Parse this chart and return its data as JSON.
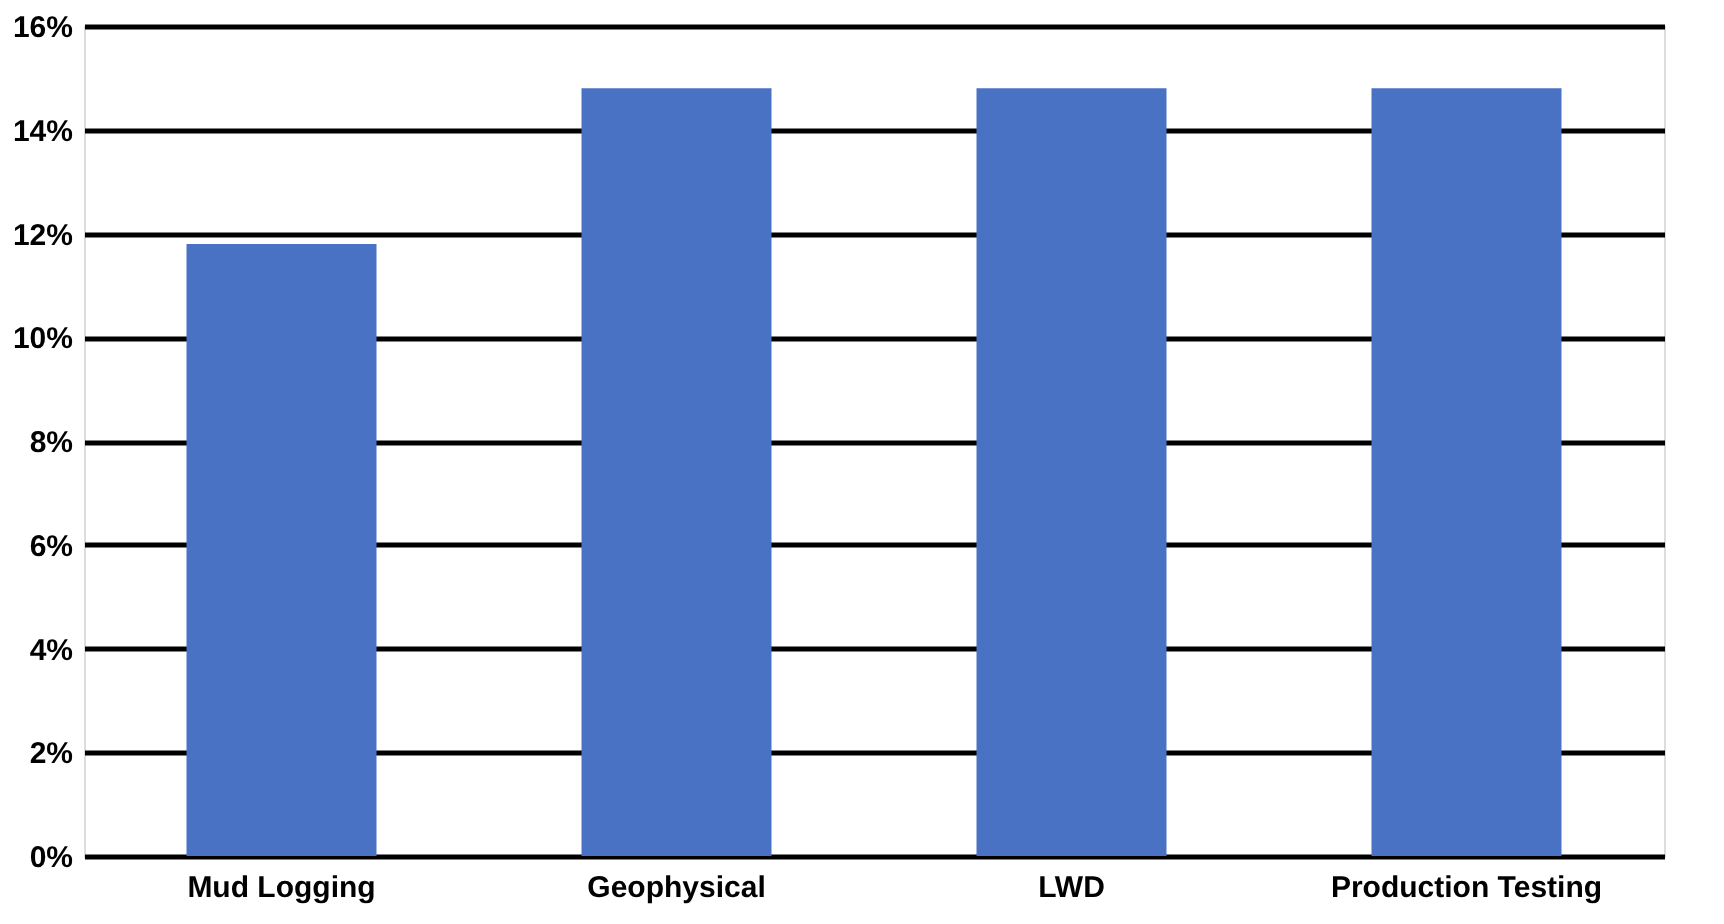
{
  "chart_data": {
    "type": "bar",
    "categories": [
      "Mud Logging",
      "Geophysical",
      "LWD",
      "Production Testing"
    ],
    "values": [
      11.8,
      14.8,
      14.8,
      14.8
    ],
    "color": "#4a72c4",
    "ylim": [
      0,
      16
    ],
    "yticks": [
      {
        "value": 0,
        "label": "0%"
      },
      {
        "value": 2,
        "label": "2%"
      },
      {
        "value": 4,
        "label": "4%"
      },
      {
        "value": 6,
        "label": "6%"
      },
      {
        "value": 8,
        "label": "8%"
      },
      {
        "value": 10,
        "label": "10%"
      },
      {
        "value": 12,
        "label": "12%"
      },
      {
        "value": 14,
        "label": "14%"
      },
      {
        "value": 16,
        "label": "16%"
      }
    ],
    "grid": "y"
  }
}
